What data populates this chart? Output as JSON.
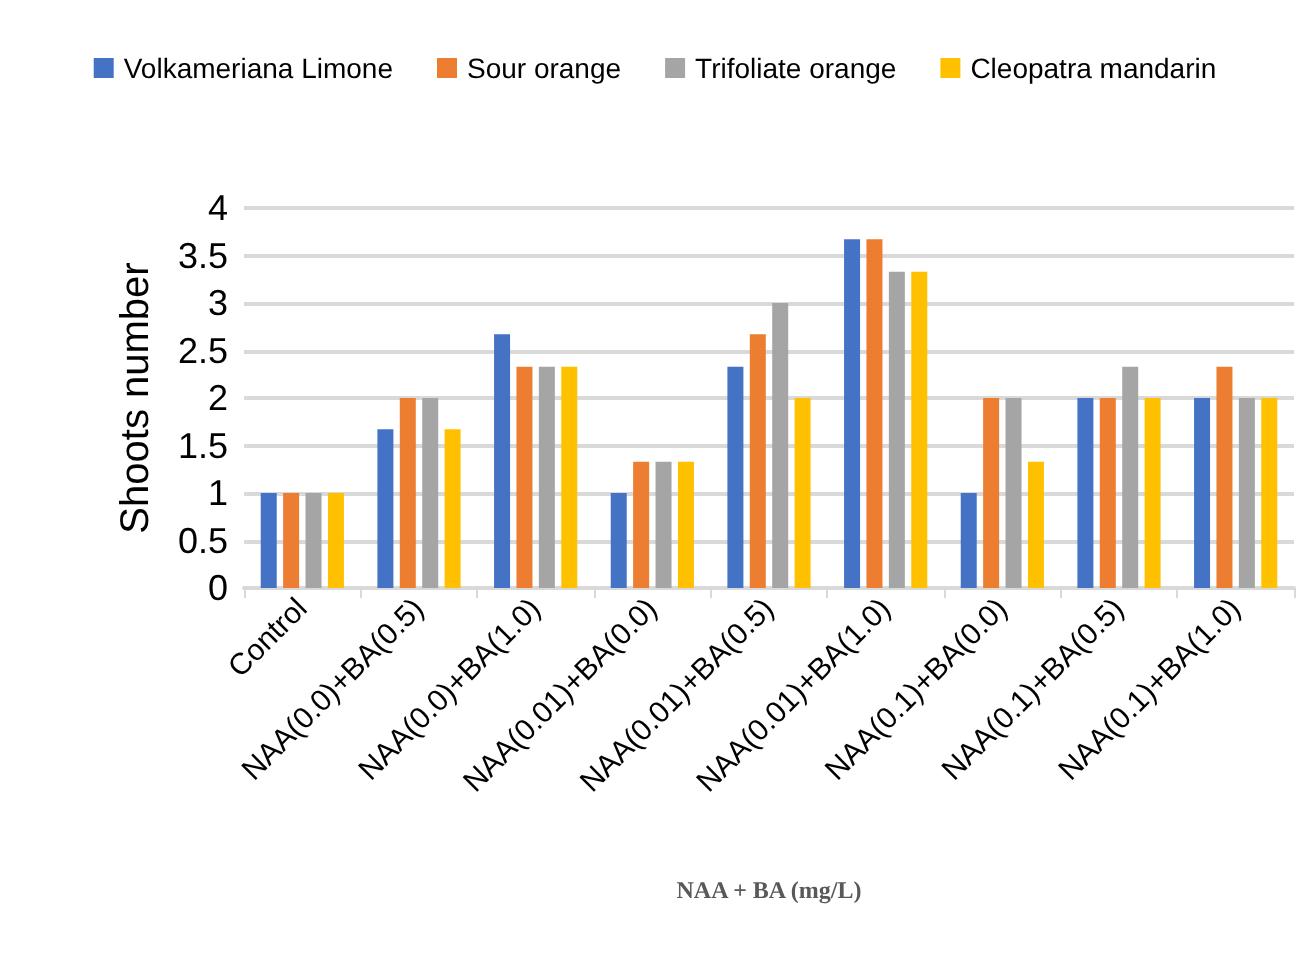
{
  "chart_data": {
    "type": "bar",
    "xlabel": "NAA + BA (mg/L)",
    "ylabel": "Shoots number",
    "categories": [
      "Control",
      "NAA(0.0)+BA(0.5)",
      "NAA(0.0)+BA(1.0)",
      "NAA(0.01)+BA(0.0)",
      "NAA(0.01)+BA(0.5)",
      "NAA(0.01)+BA(1.0)",
      "NAA(0.1)+BA(0.0)",
      "NAA(0.1)+BA(0.5)",
      "NAA(0.1)+BA(1.0)"
    ],
    "series": [
      {
        "name": "Volkameriana Limone",
        "color": "#4472c4",
        "values": [
          1,
          1.67,
          2.67,
          1,
          2.33,
          3.67,
          1,
          2,
          2
        ]
      },
      {
        "name": "Sour orange",
        "color": "#ed7d31",
        "values": [
          1,
          2,
          2.33,
          1.33,
          2.67,
          3.67,
          2,
          2,
          2.33
        ]
      },
      {
        "name": "Trifoliate orange",
        "color": "#a5a5a5",
        "values": [
          1,
          2,
          2.33,
          1.33,
          3,
          3.33,
          2,
          2.33,
          2
        ]
      },
      {
        "name": "Cleopatra mandarin",
        "color": "#ffc000",
        "values": [
          1,
          1.67,
          2.33,
          1.33,
          2,
          3.33,
          1.33,
          2,
          2
        ]
      }
    ],
    "ylim": [
      0,
      4
    ],
    "yticks": [
      0,
      0.5,
      1,
      1.5,
      2,
      2.5,
      3,
      3.5,
      4
    ],
    "grid": "y",
    "legend": "top"
  }
}
